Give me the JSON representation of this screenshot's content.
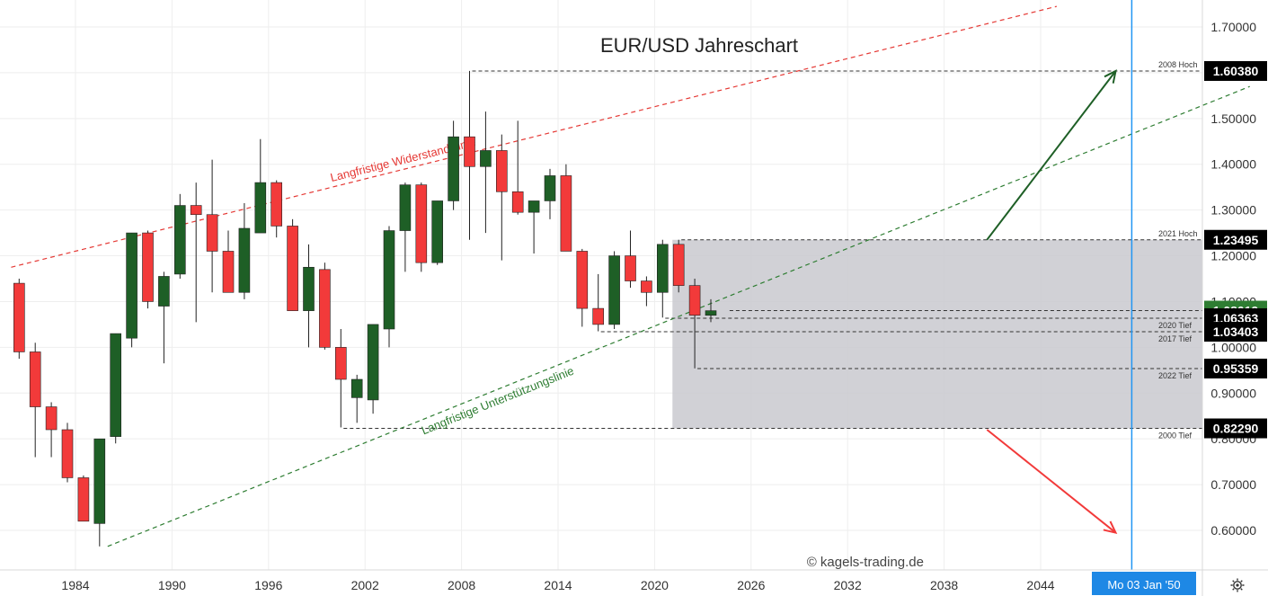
{
  "chart_data": {
    "type": "candlestick",
    "title": "EUR/USD Jahreschart",
    "watermark": "© kagels-trading.de",
    "crosshair_date_label": "Mo 03 Jan '50",
    "x_ticks": [
      "1984",
      "1990",
      "1996",
      "2002",
      "2008",
      "2014",
      "2020",
      "2026",
      "2032",
      "2038",
      "2044"
    ],
    "y_ticks": [
      "0.60000",
      "0.70000",
      "0.80000",
      "0.90000",
      "1.00000",
      "1.10000",
      "1.20000",
      "1.30000",
      "1.40000",
      "1.50000",
      "1.60000",
      "1.70000"
    ],
    "ylim": [
      0.52,
      1.75
    ],
    "x_range": [
      1980,
      2055
    ],
    "grid": true,
    "colors": {
      "up": "#1e5f26",
      "down": "#f23a3a",
      "wick": "#222222",
      "resistance": "#e53935",
      "support": "#2e7d32",
      "zone": "#c9c9cf",
      "crosshair": "#2196f3",
      "highlight_label": "#2e7d32"
    },
    "candles": [
      {
        "year": 1981,
        "open": 1.14,
        "high": 1.15,
        "low": 0.975,
        "close": 0.99
      },
      {
        "year": 1982,
        "open": 0.99,
        "high": 1.01,
        "low": 0.76,
        "close": 0.87
      },
      {
        "year": 1983,
        "open": 0.87,
        "high": 0.88,
        "low": 0.76,
        "close": 0.82
      },
      {
        "year": 1984,
        "open": 0.82,
        "high": 0.835,
        "low": 0.705,
        "close": 0.715
      },
      {
        "year": 1985,
        "open": 0.715,
        "high": 0.72,
        "low": 0.62,
        "close": 0.62
      },
      {
        "year": 1986,
        "open": 0.615,
        "high": 0.8,
        "low": 0.565,
        "close": 0.8
      },
      {
        "year": 1987,
        "open": 0.805,
        "high": 1.03,
        "low": 0.79,
        "close": 1.03
      },
      {
        "year": 1988,
        "open": 1.02,
        "high": 1.25,
        "low": 1.0,
        "close": 1.25
      },
      {
        "year": 1989,
        "open": 1.25,
        "high": 1.255,
        "low": 1.085,
        "close": 1.1
      },
      {
        "year": 1990,
        "open": 1.09,
        "high": 1.165,
        "low": 0.965,
        "close": 1.155
      },
      {
        "year": 1991,
        "open": 1.16,
        "high": 1.335,
        "low": 1.15,
        "close": 1.31
      },
      {
        "year": 1992,
        "open": 1.31,
        "high": 1.36,
        "low": 1.055,
        "close": 1.29
      },
      {
        "year": 1993,
        "open": 1.29,
        "high": 1.41,
        "low": 1.12,
        "close": 1.21
      },
      {
        "year": 1994,
        "open": 1.21,
        "high": 1.255,
        "low": 1.12,
        "close": 1.12
      },
      {
        "year": 1995,
        "open": 1.12,
        "high": 1.315,
        "low": 1.105,
        "close": 1.26
      },
      {
        "year": 1996,
        "open": 1.25,
        "high": 1.455,
        "low": 1.25,
        "close": 1.36
      },
      {
        "year": 1997,
        "open": 1.36,
        "high": 1.365,
        "low": 1.24,
        "close": 1.265
      },
      {
        "year": 1998,
        "open": 1.265,
        "high": 1.28,
        "low": 1.08,
        "close": 1.08
      },
      {
        "year": 1999,
        "open": 1.08,
        "high": 1.225,
        "low": 1.0,
        "close": 1.175
      },
      {
        "year": 2000,
        "open": 1.17,
        "high": 1.185,
        "low": 0.995,
        "close": 1.0
      },
      {
        "year": 2001,
        "open": 1.0,
        "high": 1.04,
        "low": 0.825,
        "close": 0.93
      },
      {
        "year": 2002,
        "open": 0.89,
        "high": 0.94,
        "low": 0.835,
        "close": 0.93
      },
      {
        "year": 2003,
        "open": 0.885,
        "high": 1.05,
        "low": 0.855,
        "close": 1.05
      },
      {
        "year": 2004,
        "open": 1.04,
        "high": 1.265,
        "low": 1.0,
        "close": 1.255
      },
      {
        "year": 2005,
        "open": 1.255,
        "high": 1.36,
        "low": 1.165,
        "close": 1.355
      },
      {
        "year": 2006,
        "open": 1.355,
        "high": 1.36,
        "low": 1.165,
        "close": 1.185
      },
      {
        "year": 2007,
        "open": 1.185,
        "high": 1.32,
        "low": 1.18,
        "close": 1.32
      },
      {
        "year": 2008,
        "open": 1.32,
        "high": 1.495,
        "low": 1.3,
        "close": 1.46
      },
      {
        "year": 2009,
        "open": 1.46,
        "high": 1.604,
        "low": 1.235,
        "close": 1.395
      },
      {
        "year": 2010,
        "open": 1.395,
        "high": 1.515,
        "low": 1.25,
        "close": 1.43
      },
      {
        "year": 2011,
        "open": 1.43,
        "high": 1.465,
        "low": 1.19,
        "close": 1.34
      },
      {
        "year": 2012,
        "open": 1.34,
        "high": 1.495,
        "low": 1.29,
        "close": 1.295
      },
      {
        "year": 2013,
        "open": 1.295,
        "high": 1.32,
        "low": 1.205,
        "close": 1.32
      },
      {
        "year": 2014,
        "open": 1.32,
        "high": 1.39,
        "low": 1.28,
        "close": 1.375
      },
      {
        "year": 2015,
        "open": 1.375,
        "high": 1.4,
        "low": 1.21,
        "close": 1.21
      },
      {
        "year": 2016,
        "open": 1.21,
        "high": 1.215,
        "low": 1.045,
        "close": 1.085
      },
      {
        "year": 2017,
        "open": 1.085,
        "high": 1.16,
        "low": 1.035,
        "close": 1.05
      },
      {
        "year": 2018,
        "open": 1.05,
        "high": 1.21,
        "low": 1.04,
        "close": 1.2
      },
      {
        "year": 2019,
        "open": 1.2,
        "high": 1.255,
        "low": 1.13,
        "close": 1.145
      },
      {
        "year": 2020,
        "open": 1.145,
        "high": 1.155,
        "low": 1.09,
        "close": 1.12
      },
      {
        "year": 2021,
        "open": 1.12,
        "high": 1.235,
        "low": 1.065,
        "close": 1.225
      },
      {
        "year": 2022,
        "open": 1.225,
        "high": 1.235,
        "low": 1.12,
        "close": 1.135
      },
      {
        "year": 2023,
        "open": 1.135,
        "high": 1.15,
        "low": 0.954,
        "close": 1.07
      },
      {
        "year": 2024,
        "open": 1.07,
        "high": 1.105,
        "low": 1.055,
        "close": 1.08
      }
    ],
    "levels": [
      {
        "name": "2008 Hoch",
        "value": 1.6038,
        "label": "1.60380",
        "x_from": 2009,
        "tag_offset": 0
      },
      {
        "name": "2021 Hoch",
        "value": 1.23495,
        "label": "1.23495",
        "x_from": 2022,
        "tag_offset": 0
      },
      {
        "name": "",
        "value": 1.08019,
        "label": "1.08019",
        "x_from": 2025,
        "tag_offset": 0,
        "current": true
      },
      {
        "name": "2020 Tief",
        "value": 1.06363,
        "label": "1.06363",
        "x_from": 2021,
        "tag_offset": 0
      },
      {
        "name": "2017 Tief",
        "value": 1.03403,
        "label": "1.03403",
        "x_from": 2017,
        "tag_offset": 0
      },
      {
        "name": "2022 Tief",
        "value": 0.95359,
        "label": "0.95359",
        "x_from": 2023,
        "tag_offset": 0
      },
      {
        "name": "2000 Tief",
        "value": 0.8229,
        "label": "0.82290",
        "x_from": 2001,
        "tag_offset": 0
      }
    ],
    "zone": {
      "x_from": 2021,
      "y_low": 0.8229,
      "y_high": 1.23495
    },
    "trendlines": [
      {
        "name": "Langfristige Widerstandslinie",
        "points": [
          [
            1980,
            1.175
          ],
          [
            2045,
            1.745
          ]
        ],
        "label_at": 2004.5
      },
      {
        "name": "Langfristige Unterstützungslinie",
        "points": [
          [
            1986,
            0.565
          ],
          [
            2057,
            1.57
          ]
        ],
        "label_at": 2010.0
      }
    ],
    "arrows": [
      {
        "from": [
          2041,
          1.235
        ],
        "to": [
          2049,
          1.6038
        ],
        "color": "up"
      },
      {
        "from": [
          2041,
          0.82
        ],
        "to": [
          2049,
          0.595
        ],
        "color": "down"
      }
    ],
    "crosshair_year": 2050
  }
}
